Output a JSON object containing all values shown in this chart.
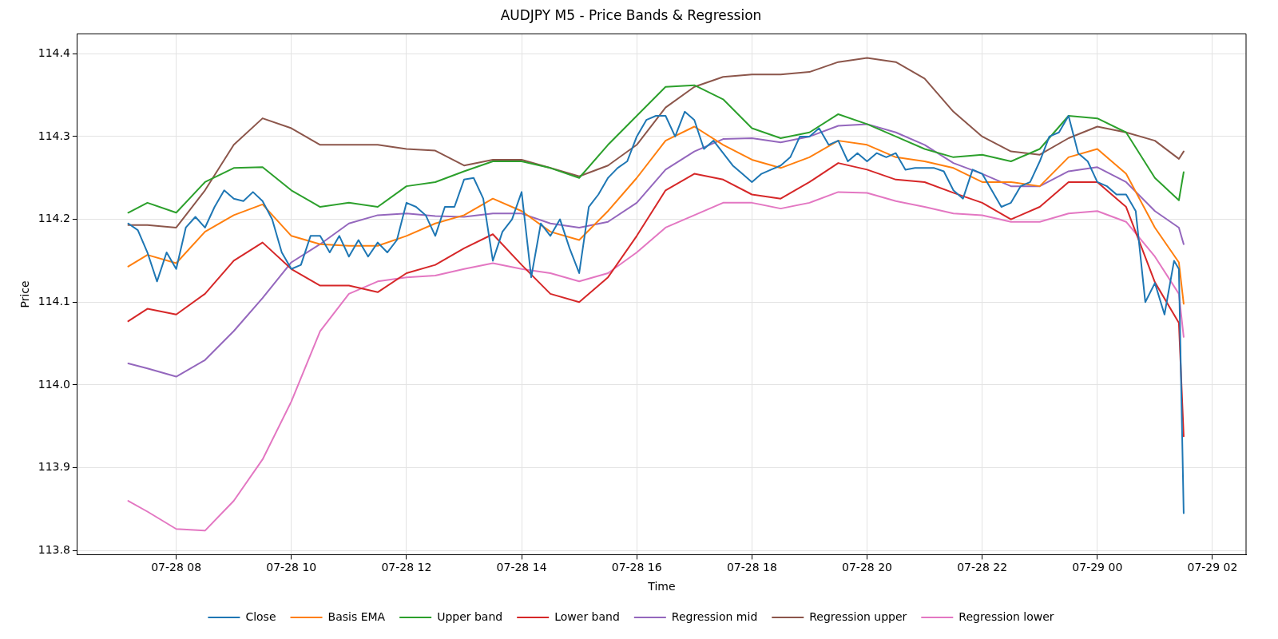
{
  "chart_data": {
    "type": "line",
    "title": "AUDJPY M5 - Price Bands & Regression",
    "xlabel": "Time",
    "ylabel": "Price",
    "xlim": [
      "--07-28T06:17",
      "--07-29T02:35"
    ],
    "xticks": [
      {
        "value": "--07-28T08:00",
        "label": "07-28 08"
      },
      {
        "value": "--07-28T10:00",
        "label": "07-28 10"
      },
      {
        "value": "--07-28T12:00",
        "label": "07-28 12"
      },
      {
        "value": "--07-28T14:00",
        "label": "07-28 14"
      },
      {
        "value": "--07-28T16:00",
        "label": "07-28 16"
      },
      {
        "value": "--07-28T18:00",
        "label": "07-28 18"
      },
      {
        "value": "--07-28T20:00",
        "label": "07-28 20"
      },
      {
        "value": "--07-28T22:00",
        "label": "07-28 22"
      },
      {
        "value": "--07-29T00:00",
        "label": "07-29 00"
      },
      {
        "value": "--07-29T02:00",
        "label": "07-29 02"
      }
    ],
    "ylim": [
      113.795,
      114.424
    ],
    "yticks": [
      113.8,
      113.9,
      {
        "value": 114,
        "label": "114.0"
      },
      114.1,
      114.2,
      114.3,
      114.4
    ],
    "grid": true,
    "legend": "bottom",
    "marker": "none",
    "line_style": "solid",
    "x": [
      "--07-28T07:10",
      "--07-28T07:30",
      "--07-28T08:00",
      "--07-28T08:30",
      "--07-28T09:00",
      "--07-28T09:30",
      "--07-28T10:00",
      "--07-28T10:30",
      "--07-28T11:00",
      "--07-28T11:30",
      "--07-28T12:00",
      "--07-28T12:30",
      "--07-28T13:00",
      "--07-28T13:30",
      "--07-28T14:00",
      "--07-28T14:30",
      "--07-28T15:00",
      "--07-28T15:30",
      "--07-28T16:00",
      "--07-28T16:30",
      "--07-28T17:00",
      "--07-28T17:30",
      "--07-28T18:00",
      "--07-28T18:30",
      "--07-28T19:00",
      "--07-28T19:30",
      "--07-28T20:00",
      "--07-28T20:30",
      "--07-28T21:00",
      "--07-28T21:30",
      "--07-28T22:00",
      "--07-28T22:30",
      "--07-28T23:00",
      "--07-28T23:30",
      "--07-29T00:00",
      "--07-29T00:30",
      "--07-29T01:00",
      "--07-29T01:25",
      "--07-29T01:30"
    ],
    "series": [
      {
        "name": "Close",
        "color": "#1f77b4",
        "x": [
          "--07-28T07:10",
          "--07-28T07:20",
          "--07-28T07:30",
          "--07-28T07:40",
          "--07-28T07:50",
          "--07-28T08:00",
          "--07-28T08:10",
          "--07-28T08:20",
          "--07-28T08:30",
          "--07-28T08:40",
          "--07-28T08:50",
          "--07-28T09:00",
          "--07-28T09:10",
          "--07-28T09:20",
          "--07-28T09:30",
          "--07-28T09:40",
          "--07-28T09:50",
          "--07-28T10:00",
          "--07-28T10:10",
          "--07-28T10:20",
          "--07-28T10:30",
          "--07-28T10:40",
          "--07-28T10:50",
          "--07-28T11:00",
          "--07-28T11:10",
          "--07-28T11:20",
          "--07-28T11:30",
          "--07-28T11:40",
          "--07-28T11:50",
          "--07-28T12:00",
          "--07-28T12:10",
          "--07-28T12:20",
          "--07-28T12:30",
          "--07-28T12:40",
          "--07-28T12:50",
          "--07-28T13:00",
          "--07-28T13:10",
          "--07-28T13:20",
          "--07-28T13:30",
          "--07-28T13:40",
          "--07-28T13:50",
          "--07-28T14:00",
          "--07-28T14:10",
          "--07-28T14:20",
          "--07-28T14:30",
          "--07-28T14:40",
          "--07-28T14:50",
          "--07-28T15:00",
          "--07-28T15:10",
          "--07-28T15:20",
          "--07-28T15:30",
          "--07-28T15:40",
          "--07-28T15:50",
          "--07-28T16:00",
          "--07-28T16:10",
          "--07-28T16:20",
          "--07-28T16:30",
          "--07-28T16:40",
          "--07-28T16:50",
          "--07-28T17:00",
          "--07-28T17:10",
          "--07-28T17:20",
          "--07-28T17:30",
          "--07-28T17:40",
          "--07-28T17:50",
          "--07-28T18:00",
          "--07-28T18:10",
          "--07-28T18:20",
          "--07-28T18:30",
          "--07-28T18:40",
          "--07-28T18:50",
          "--07-28T19:00",
          "--07-28T19:10",
          "--07-28T19:20",
          "--07-28T19:30",
          "--07-28T19:40",
          "--07-28T19:50",
          "--07-28T20:00",
          "--07-28T20:10",
          "--07-28T20:20",
          "--07-28T20:30",
          "--07-28T20:40",
          "--07-28T20:50",
          "--07-28T21:00",
          "--07-28T21:10",
          "--07-28T21:20",
          "--07-28T21:30",
          "--07-28T21:40",
          "--07-28T21:50",
          "--07-28T22:00",
          "--07-28T22:10",
          "--07-28T22:20",
          "--07-28T22:30",
          "--07-28T22:40",
          "--07-28T22:50",
          "--07-28T23:00",
          "--07-28T23:10",
          "--07-28T23:20",
          "--07-28T23:30",
          "--07-28T23:40",
          "--07-28T23:50",
          "--07-29T00:00",
          "--07-29T00:10",
          "--07-29T00:20",
          "--07-29T00:30",
          "--07-29T00:40",
          "--07-29T00:50",
          "--07-29T01:00",
          "--07-29T01:10",
          "--07-29T01:20",
          "--07-29T01:25",
          "--07-29T01:30"
        ],
        "values": [
          114.195,
          114.187,
          114.16,
          114.125,
          114.16,
          114.14,
          114.19,
          114.203,
          114.19,
          114.215,
          114.235,
          114.225,
          114.222,
          114.233,
          114.222,
          114.2,
          114.16,
          114.14,
          114.145,
          114.18,
          114.18,
          114.16,
          114.18,
          114.155,
          114.175,
          114.155,
          114.172,
          114.16,
          114.175,
          114.22,
          114.215,
          114.205,
          114.18,
          114.215,
          114.215,
          114.248,
          114.25,
          114.225,
          114.15,
          114.185,
          114.2,
          114.233,
          114.13,
          114.195,
          114.18,
          114.2,
          114.165,
          114.135,
          114.215,
          114.23,
          114.25,
          114.262,
          114.27,
          114.3,
          114.32,
          114.325,
          114.325,
          114.3,
          114.33,
          114.32,
          114.285,
          114.295,
          114.28,
          114.265,
          114.255,
          114.245,
          114.255,
          114.26,
          114.265,
          114.275,
          114.3,
          114.3,
          114.31,
          114.29,
          114.295,
          114.27,
          114.28,
          114.27,
          114.28,
          114.275,
          114.28,
          114.26,
          114.262,
          114.262,
          114.262,
          114.258,
          114.235,
          114.225,
          114.26,
          114.255,
          114.235,
          114.215,
          114.22,
          114.24,
          114.245,
          114.27,
          114.3,
          114.305,
          114.325,
          114.28,
          114.27,
          114.245,
          114.24,
          114.23,
          114.23,
          114.21,
          114.1,
          114.123,
          114.085,
          114.15,
          114.14,
          113.845
        ]
      },
      {
        "name": "Basis EMA",
        "color": "#ff7f0e",
        "values": [
          114.143,
          114.157,
          114.147,
          114.185,
          114.205,
          114.218,
          114.18,
          114.17,
          114.168,
          114.168,
          114.18,
          114.195,
          114.205,
          114.225,
          114.21,
          114.185,
          114.175,
          114.21,
          114.25,
          114.295,
          114.312,
          114.29,
          114.272,
          114.262,
          114.275,
          114.295,
          114.29,
          114.275,
          114.27,
          114.262,
          114.245,
          114.245,
          114.24,
          114.275,
          114.285,
          114.255,
          114.19,
          114.148,
          114.098
        ]
      },
      {
        "name": "Upper band",
        "color": "#2ca02c",
        "values": [
          114.208,
          114.22,
          114.208,
          114.245,
          114.262,
          114.263,
          114.235,
          114.215,
          114.22,
          114.215,
          114.24,
          114.245,
          114.258,
          114.27,
          114.27,
          114.262,
          114.25,
          114.29,
          114.325,
          114.36,
          114.362,
          114.345,
          114.31,
          114.298,
          114.305,
          114.327,
          114.315,
          114.3,
          114.285,
          114.275,
          114.278,
          114.27,
          114.285,
          114.325,
          114.322,
          114.305,
          114.25,
          114.223,
          114.257
        ]
      },
      {
        "name": "Lower band",
        "color": "#d62728",
        "values": [
          114.077,
          114.092,
          114.085,
          114.11,
          114.15,
          114.172,
          114.14,
          114.12,
          114.12,
          114.112,
          114.135,
          114.145,
          114.165,
          114.182,
          114.145,
          114.11,
          114.1,
          114.13,
          114.18,
          114.235,
          114.255,
          114.248,
          114.23,
          114.225,
          114.245,
          114.268,
          114.26,
          114.248,
          114.245,
          114.232,
          114.22,
          114.2,
          114.215,
          114.245,
          114.245,
          114.215,
          114.124,
          114.075,
          113.938
        ]
      },
      {
        "name": "Regression mid",
        "color": "#9467bd",
        "values": [
          114.026,
          114.02,
          114.01,
          114.03,
          114.065,
          114.105,
          114.148,
          114.17,
          114.195,
          114.205,
          114.207,
          114.204,
          114.203,
          114.207,
          114.207,
          114.195,
          114.19,
          114.197,
          114.22,
          114.26,
          114.282,
          114.297,
          114.298,
          114.293,
          114.3,
          114.313,
          114.315,
          114.305,
          114.29,
          114.268,
          114.255,
          114.24,
          114.24,
          114.258,
          114.263,
          114.245,
          114.21,
          114.19,
          114.17
        ]
      },
      {
        "name": "Regression upper",
        "color": "#8c564b",
        "values": [
          114.193,
          114.193,
          114.19,
          114.235,
          114.29,
          114.322,
          114.31,
          114.29,
          114.29,
          114.29,
          114.285,
          114.283,
          114.265,
          114.272,
          114.272,
          114.262,
          114.252,
          114.265,
          114.29,
          114.335,
          114.36,
          114.372,
          114.375,
          114.375,
          114.378,
          114.39,
          114.395,
          114.39,
          114.37,
          114.33,
          114.3,
          114.282,
          114.278,
          114.298,
          114.312,
          114.305,
          114.295,
          114.273,
          114.282
        ]
      },
      {
        "name": "Regression lower",
        "color": "#e377c2",
        "values": [
          113.86,
          113.847,
          113.826,
          113.824,
          113.86,
          113.91,
          113.98,
          114.065,
          114.11,
          114.125,
          114.13,
          114.132,
          114.14,
          114.147,
          114.14,
          114.135,
          114.125,
          114.135,
          114.16,
          114.19,
          114.205,
          114.22,
          114.22,
          114.213,
          114.22,
          114.233,
          114.232,
          114.222,
          114.215,
          114.207,
          114.205,
          114.197,
          114.197,
          114.207,
          114.21,
          114.197,
          114.155,
          114.11,
          114.058
        ]
      }
    ]
  }
}
